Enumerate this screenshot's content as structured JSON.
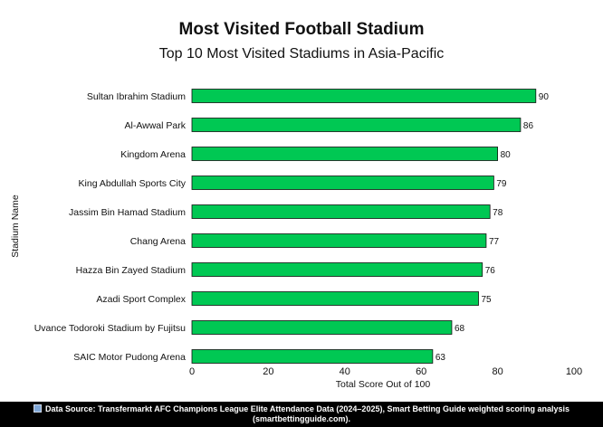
{
  "chart_data": {
    "type": "bar",
    "orientation": "horizontal",
    "title": "Most Visited Football Stadium",
    "subtitle": "Top 10 Most Visited Stadiums in Asia-Pacific",
    "xlabel": "Total Score Out of 100",
    "ylabel": "Stadium Name",
    "categories": [
      "Sultan Ibrahim Stadium",
      "Al-Awwal Park",
      "Kingdom Arena",
      "King Abdullah Sports City",
      "Jassim Bin Hamad Stadium",
      "Chang Arena",
      "Hazza Bin Zayed Stadium",
      "Azadi Sport Complex",
      "Uvance Todoroki Stadium by Fujitsu",
      "SAIC Motor Pudong Arena"
    ],
    "values": [
      90,
      86,
      80,
      79,
      78,
      77,
      76,
      75,
      68,
      63
    ],
    "xlim": [
      0,
      100
    ],
    "xticks": [
      0,
      20,
      40,
      60,
      80,
      100
    ],
    "grid": false,
    "bar_color": "#00c853",
    "bar_edge_color": "#111111"
  },
  "footer": {
    "source_text": "Data Source: Transfermarkt AFC Champions League Elite Attendance Data (2024–2025), Smart Betting Guide weighted scoring analysis (smartbettingguide.com).",
    "icon": "chart-icon"
  }
}
